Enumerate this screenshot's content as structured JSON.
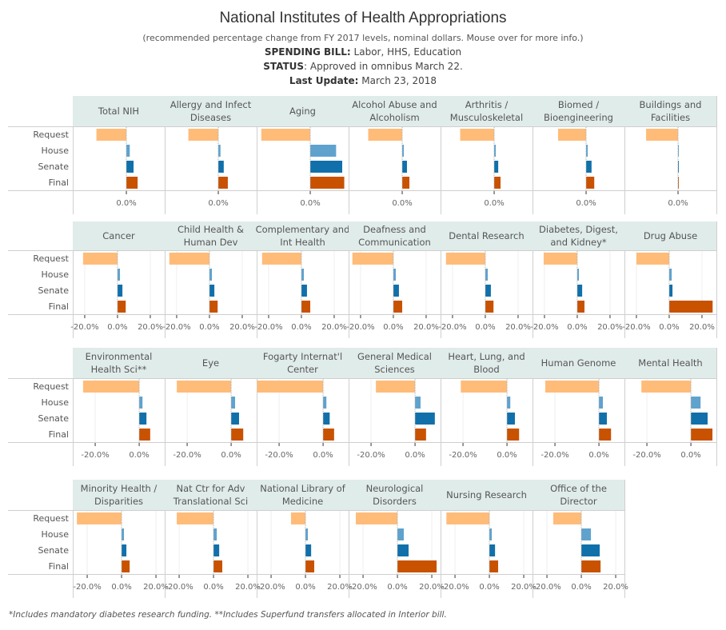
{
  "header": {
    "title": "National Institutes of Health Appropriations",
    "subtitle": "(recommended percentage change from FY 2017 levels, nominal dollars.  Mouse over for more info.)",
    "bill_label": "SPENDING BILL:",
    "bill_value": " Labor, HHS, Education",
    "status_label": "STATUS",
    "status_value": ": Approved in omnibus March 22.",
    "update_label": "Last Update:",
    "update_value": " March 23, 2018"
  },
  "footnote": "*Includes mandatory diabetes research funding.  **Includes Superfund transfers allocated in Interior bill.",
  "colors": {
    "Request": "#ffbc79",
    "House": "#5fa2ce",
    "Senate": "#1170aa",
    "Final": "#c85200",
    "header_bg": "#e0ecea"
  },
  "chart_data": {
    "type": "bar",
    "orientation": "horizontal",
    "title": "National Institutes of Health Appropriations",
    "subtitle": "recommended percentage change from FY 2017 levels, nominal dollars",
    "categories": [
      "Request",
      "House",
      "Senate",
      "Final"
    ],
    "grid": true,
    "rows": [
      {
        "xlim": [
          -39.4,
          28.2
        ],
        "ticks": [
          0
        ],
        "tick_labels": [
          "0.0%"
        ],
        "panels": [
          {
            "name": "Total NIH",
            "label_lines": [
              "Total NIH"
            ],
            "values": [
              -22,
              2.5,
              5.3,
              8.3
            ]
          },
          {
            "name": "Allergy and Infect Diseases",
            "label_lines": [
              "Allergy and Infect",
              "Diseases"
            ],
            "values": [
              -22,
              1.6,
              4,
              7
            ]
          },
          {
            "name": "Aging",
            "label_lines": [
              "Aging"
            ],
            "values": [
              -36,
              19,
              23.5,
              25
            ]
          },
          {
            "name": "Alcohol Abuse and Alcoholism",
            "label_lines": [
              "Alcohol Abuse and",
              "Alcoholism"
            ],
            "values": [
              -25,
              1.2,
              3.5,
              5.3
            ]
          },
          {
            "name": "Arthritis / Musculoskeletal",
            "label_lines": [
              "Arthritis /",
              "Musculoskeletal"
            ],
            "values": [
              -25,
              1.2,
              3,
              4.7
            ]
          },
          {
            "name": "Biomed / Bioengineering",
            "label_lines": [
              "Biomed /",
              "Bioengineering"
            ],
            "values": [
              -20.6,
              1.2,
              4,
              6
            ]
          },
          {
            "name": "Buildings and Facilities",
            "label_lines": [
              "Buildings and",
              "Facilities"
            ],
            "values": [
              -23.5,
              0.4,
              0.4,
              0.4
            ]
          }
        ]
      },
      {
        "xlim": [
          -27.3,
          28.8
        ],
        "ticks": [
          -20,
          0,
          20
        ],
        "tick_labels": [
          "-20.0%",
          "0.0%",
          "20.0%"
        ],
        "panels": [
          {
            "name": "Cancer",
            "label_lines": [
              "Cancer"
            ],
            "values": [
              -21,
              1.5,
              3,
              5
            ]
          },
          {
            "name": "Child Health & Human Dev",
            "label_lines": [
              "Child Health &",
              "Human Dev"
            ],
            "values": [
              -24.5,
              1.5,
              3,
              5
            ]
          },
          {
            "name": "Complementary and Int Health",
            "label_lines": [
              "Complementary and",
              "Int Health"
            ],
            "values": [
              -24,
              1.5,
              3.4,
              5.4
            ]
          },
          {
            "name": "Deafness and Communication",
            "label_lines": [
              "Deafness and",
              "Communication"
            ],
            "values": [
              -25,
              1.5,
              3.4,
              5.4
            ]
          },
          {
            "name": "Dental Research",
            "label_lines": [
              "Dental Research"
            ],
            "values": [
              -24,
              1.5,
              3.4,
              5
            ]
          },
          {
            "name": "Diabetes, Digest, and Kidney*",
            "label_lines": [
              "Diabetes, Digest,",
              "and Kidney*"
            ],
            "values": [
              -20.5,
              1,
              3,
              4.4
            ]
          },
          {
            "name": "Drug Abuse",
            "label_lines": [
              "Drug Abuse"
            ],
            "values": [
              -20,
              1.5,
              2,
              26.5
            ]
          }
        ]
      },
      {
        "xlim": [
          -30.2,
          11.6
        ],
        "ticks": [
          -20,
          0
        ],
        "tick_labels": [
          "-20.0%",
          "0.0%"
        ],
        "panels": [
          {
            "name": "Environmental Health Sci**",
            "label_lines": [
              "Environmental",
              "Health Sci**"
            ],
            "values": [
              -25.5,
              1.5,
              3.3,
              5
            ]
          },
          {
            "name": "Eye",
            "label_lines": [
              "Eye"
            ],
            "values": [
              -24.7,
              1.8,
              3.6,
              5.5
            ]
          },
          {
            "name": "Fogarty Internat'l Center",
            "label_lines": [
              "Fogarty Internat'l",
              "Center"
            ],
            "values": [
              -30,
              1.5,
              3,
              5
            ]
          },
          {
            "name": "General Medical Sciences",
            "label_lines": [
              "General Medical",
              "Sciences"
            ],
            "values": [
              -17.8,
              2.5,
              9,
              5
            ]
          },
          {
            "name": "Heart, Lung, and Blood",
            "label_lines": [
              "Heart, Lung, and",
              "Blood"
            ],
            "values": [
              -21,
              1.5,
              3.6,
              5.5
            ]
          },
          {
            "name": "Human Genome",
            "label_lines": [
              "Human Genome"
            ],
            "values": [
              -24.4,
              1.8,
              3.6,
              5.5
            ]
          },
          {
            "name": "Mental Health",
            "label_lines": [
              "Mental Health"
            ],
            "values": [
              -22.5,
              4.4,
              7.6,
              9.8
            ]
          }
        ]
      },
      {
        "xlim": [
          -28.4,
          25.1
        ],
        "ticks": [
          -20,
          0,
          20
        ],
        "tick_labels": [
          "-20.0%",
          "0.0%",
          "20.0%"
        ],
        "panels": [
          {
            "name": "Minority Health / Disparities",
            "label_lines": [
              "Minority Health /",
              "Disparities"
            ],
            "values": [
              -26,
              1.4,
              2.8,
              4.7
            ]
          },
          {
            "name": "Nat Ctr for Adv Translational Sci",
            "label_lines": [
              "Nat Ctr for Adv",
              "Translational Sci"
            ],
            "values": [
              -21.4,
              1.9,
              3.3,
              5.1
            ]
          },
          {
            "name": "National Library of Medicine",
            "label_lines": [
              "National Library of",
              "Medicine"
            ],
            "values": [
              -8.4,
              1.4,
              3.3,
              5.1
            ]
          },
          {
            "name": "Neurological Disorders",
            "label_lines": [
              "Neurological",
              "Disorders"
            ],
            "values": [
              -24.2,
              3.7,
              6.5,
              22.8
            ]
          },
          {
            "name": "Nursing Research",
            "label_lines": [
              "Nursing Research"
            ],
            "values": [
              -25,
              1.4,
              3.3,
              5.1
            ]
          },
          {
            "name": "Office of the Director",
            "label_lines": [
              "Office of the",
              "Director"
            ],
            "values": [
              -16.3,
              5.6,
              10.7,
              11.2
            ]
          }
        ]
      }
    ]
  }
}
